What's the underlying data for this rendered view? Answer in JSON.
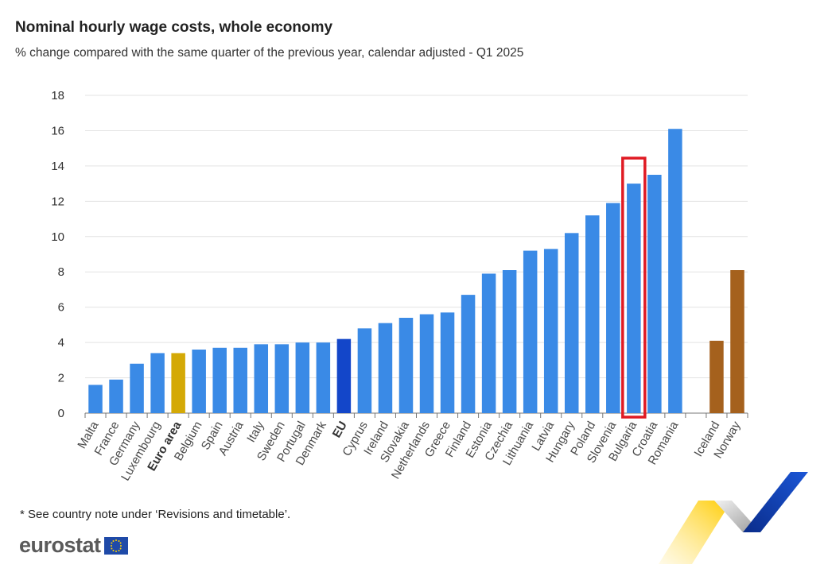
{
  "title": "Nominal hourly wage costs, whole economy",
  "subtitle": "% change compared with the same quarter of the previous year, calendar adjusted - Q1 2025",
  "footnote": "* See country note under ‘Revisions and timetable’.",
  "brand": "eurostat",
  "colors": {
    "country": "#3a8ae6",
    "euro_area": "#d4a906",
    "eu": "#1346c9",
    "efta": "#a5611d",
    "highlight": "#e01b24",
    "grid": "#e3e3e3"
  },
  "chart_data": {
    "type": "bar",
    "title": "Nominal hourly wage costs, whole economy",
    "subtitle": "% change compared with the same quarter of the previous year, calendar adjusted - Q1 2025",
    "ylim": [
      0,
      18
    ],
    "yticks": [
      0,
      2,
      4,
      6,
      8,
      10,
      12,
      14,
      16,
      18
    ],
    "grid": true,
    "highlighted_category": "Bulgaria",
    "categories": [
      "Malta",
      "France",
      "Germany",
      "Luxembourg",
      "Euro area",
      "Belgium",
      "Spain",
      "Austria",
      "Italy",
      "Sweden",
      "Portugal",
      "Denmark",
      "EU",
      "Cyprus",
      "Ireland",
      "Slovakia",
      "Netherlands",
      "Greece",
      "Finland",
      "Estonia",
      "Czechia",
      "Lithuania",
      "Latvia",
      "Hungary",
      "Poland",
      "Slovenia",
      "Bulgaria",
      "Croatia",
      "Romania",
      "",
      "Iceland",
      "Norway"
    ],
    "values": [
      1.6,
      1.9,
      2.8,
      3.4,
      3.4,
      3.6,
      3.7,
      3.7,
      3.9,
      3.9,
      4.0,
      4.0,
      4.2,
      4.8,
      5.1,
      5.4,
      5.6,
      5.7,
      6.7,
      7.9,
      8.1,
      9.2,
      9.3,
      10.2,
      11.2,
      11.9,
      13.0,
      13.5,
      16.1,
      null,
      4.1,
      8.1
    ],
    "groups": [
      "country",
      "country",
      "country",
      "country",
      "euro_area",
      "country",
      "country",
      "country",
      "country",
      "country",
      "country",
      "country",
      "eu",
      "country",
      "country",
      "country",
      "country",
      "country",
      "country",
      "country",
      "country",
      "country",
      "country",
      "country",
      "country",
      "country",
      "country",
      "country",
      "country",
      "gap",
      "efta",
      "efta"
    ]
  }
}
